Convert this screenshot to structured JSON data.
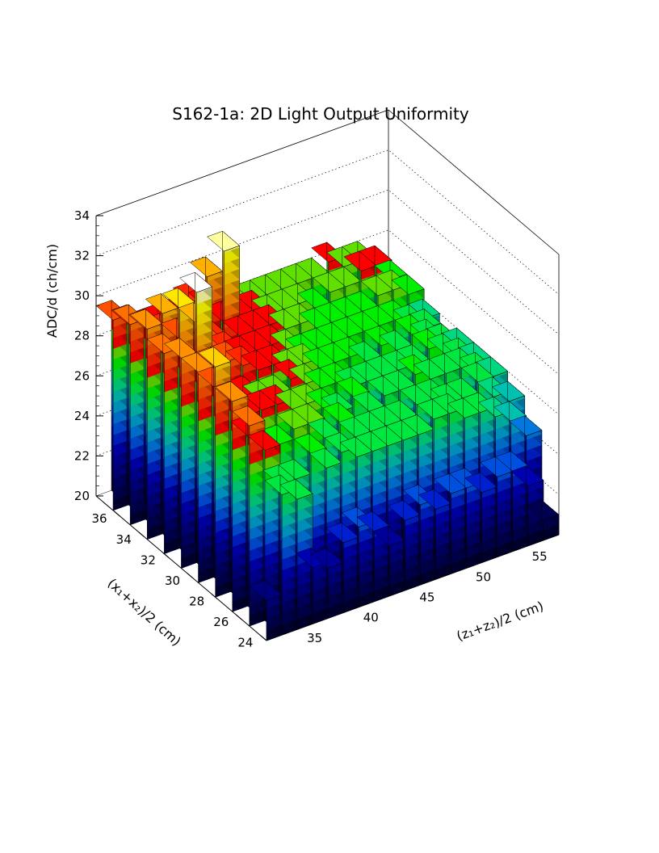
{
  "chart_data": {
    "type": "lego",
    "title": "S162-1a: 2D Light Output Uniformity",
    "xlabel": "(z₁+z₂)/2 (cm)",
    "ylabel": "(x₁+x₂)/2 (cm)",
    "zlabel": "ADC/d (ch/cm)",
    "x_ticks": [
      "35",
      "40",
      "45",
      "50",
      "55"
    ],
    "y_ticks": [
      "24",
      "26",
      "28",
      "30",
      "32",
      "34",
      "36"
    ],
    "z_ticks": [
      "20",
      "22",
      "24",
      "26",
      "28",
      "30",
      "32",
      "34"
    ],
    "xlim": [
      31,
      57
    ],
    "ylim": [
      23.5,
      37.5
    ],
    "zlim": [
      20,
      34
    ],
    "x_bins": 19,
    "y_bins": 10,
    "palette": [
      "#000033",
      "#000050",
      "#000066",
      "#00007f",
      "#000099",
      "#0000b3",
      "#0020d0",
      "#0050e0",
      "#0078e0",
      "#00a0d0",
      "#00c0b0",
      "#00d880",
      "#00e840",
      "#00f000",
      "#60e000",
      "#ff0000",
      "#ff2800",
      "#ff5000",
      "#ff7000",
      "#ff9000",
      "#ffb000",
      "#ffd000",
      "#ffe800",
      "#ffff00",
      "#ffffa0",
      "#ffffff"
    ],
    "heights": [
      [
        22.0,
        27.0,
        26.5,
        22.8,
        22.5,
        23.5,
        24.0,
        23.5,
        22.5,
        23.5,
        24.0,
        23.5,
        24.0,
        24.0,
        23.5,
        24.0,
        24.0,
        23.0,
        21.0
      ],
      [
        30.0,
        28.5,
        26.5,
        26.5,
        27.5,
        26.5,
        27.0,
        26.5,
        26.5,
        26.5,
        26.5,
        26.5,
        27.0,
        27.0,
        26.5,
        26.5,
        26.0,
        25.5,
        24.5
      ],
      [
        30.5,
        28.5,
        27.5,
        27.5,
        28.0,
        28.0,
        27.0,
        27.5,
        26.5,
        26.5,
        26.5,
        26.5,
        27.0,
        27.0,
        26.5,
        26.5,
        27.0,
        26.0,
        25.5
      ],
      [
        31.5,
        29.5,
        28.5,
        28.5,
        28.5,
        28.0,
        28.0,
        27.5,
        27.0,
        27.5,
        26.5,
        27.0,
        27.0,
        27.5,
        27.0,
        27.0,
        27.0,
        26.5,
        26.0
      ],
      [
        30.5,
        29.5,
        28.5,
        28.5,
        28.0,
        28.0,
        28.5,
        28.0,
        27.5,
        27.5,
        27.0,
        27.0,
        27.0,
        27.0,
        27.0,
        27.5,
        27.0,
        26.5,
        26.0
      ],
      [
        30.5,
        33.5,
        29.5,
        29.5,
        29.0,
        28.5,
        28.5,
        28.0,
        28.0,
        27.5,
        27.5,
        27.5,
        27.0,
        27.5,
        27.0,
        27.5,
        27.0,
        26.5,
        26.0
      ],
      [
        30.0,
        32.0,
        31.0,
        29.5,
        29.0,
        28.5,
        28.5,
        28.5,
        28.0,
        27.5,
        27.5,
        27.5,
        27.5,
        27.5,
        27.5,
        27.5,
        27.0,
        26.5,
        25.5
      ],
      [
        30.5,
        31.0,
        29.5,
        29.5,
        29.0,
        33.0,
        28.5,
        28.5,
        28.5,
        28.0,
        28.0,
        27.5,
        27.5,
        27.5,
        27.5,
        28.0,
        28.0,
        27.5,
        26.0
      ],
      [
        30.0,
        29.5,
        29.0,
        29.0,
        28.5,
        31.0,
        28.5,
        28.5,
        28.5,
        28.0,
        28.0,
        28.0,
        27.5,
        28.0,
        28.0,
        28.5,
        28.5,
        27.5,
        26.5
      ],
      [
        29.5,
        29.0,
        28.5,
        28.5,
        28.5,
        29.0,
        28.5,
        28.5,
        28.0,
        28.0,
        28.0,
        28.0,
        28.0,
        28.0,
        28.5,
        28.0,
        28.0,
        27.0,
        26.0
      ]
    ]
  }
}
